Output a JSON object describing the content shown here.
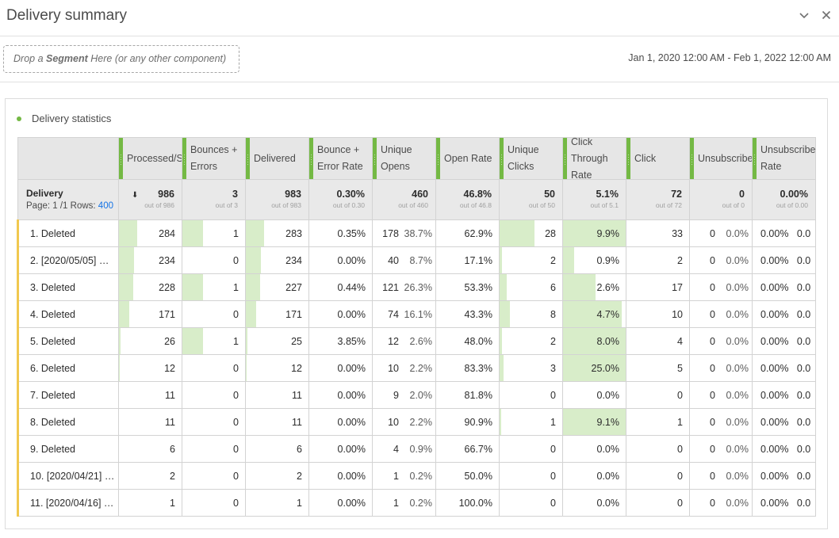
{
  "header": {
    "title": "Delivery summary",
    "collapse_icon": "chevron-down-icon",
    "close_icon": "close-icon"
  },
  "segment_bar": {
    "drop_prefix": "Drop a ",
    "drop_bold": "Segment",
    "drop_suffix": " Here (or any other component)",
    "date_range": "Jan 1, 2020 12:00 AM - Feb 1, 2022 12:00 AM"
  },
  "panel": {
    "title": "Delivery statistics",
    "accent_color": "#74b944"
  },
  "table": {
    "dimension": {
      "name": "Delivery",
      "page_label": "Page: 1 /1",
      "rows_label": "Rows:",
      "rows_value": "400"
    },
    "columns": [
      {
        "label": "Processed/Sent",
        "total": "986",
        "total_sub": "out of 986"
      },
      {
        "label": "Bounces + Errors",
        "total": "3",
        "total_sub": "out of 3"
      },
      {
        "label": "Delivered",
        "total": "983",
        "total_sub": "out of 983"
      },
      {
        "label": "Bounce + Error Rate",
        "total": "0.30%",
        "total_sub": "out of 0.30"
      },
      {
        "label": "Unique Opens",
        "total": "460",
        "total_sub": "out of 460"
      },
      {
        "label": "Open Rate",
        "total": "46.8%",
        "total_sub": "out of 46.8"
      },
      {
        "label": "Unique Clicks",
        "total": "50",
        "total_sub": "out of 50"
      },
      {
        "label": "Click Through Rate",
        "total": "5.1%",
        "total_sub": "out of 5.1"
      },
      {
        "label": "Click",
        "total": "72",
        "total_sub": "out of 72"
      },
      {
        "label": "Unsubscribes",
        "total": "0",
        "total_sub": "out of 0"
      },
      {
        "label": "Unsubscribe Rate",
        "total": "0.00%",
        "total_sub": "out of 0.00"
      }
    ],
    "rows": [
      {
        "name": "1. Deleted",
        "processed": "284",
        "processed_bar": 0.29,
        "bounces": "1",
        "bounces_bar": 0.33,
        "delivered": "283",
        "delivered_bar": 0.29,
        "bounce_rate": "0.35%",
        "opens": "178",
        "opens_pct": "38.7%",
        "open_rate": "62.9%",
        "clicks": "28",
        "clicks_bar": 0.56,
        "ctr": "9.9%",
        "ctr_bar": 1.0,
        "click": "33",
        "unsub": "0",
        "unsub_pct": "0.0%",
        "unsub_rate": "0.00%",
        "unsub_rate_pct": "0.0"
      },
      {
        "name": "2. [2020/05/05] …",
        "processed": "234",
        "processed_bar": 0.24,
        "bounces": "0",
        "bounces_bar": 0,
        "delivered": "234",
        "delivered_bar": 0.24,
        "bounce_rate": "0.00%",
        "opens": "40",
        "opens_pct": "8.7%",
        "open_rate": "17.1%",
        "clicks": "2",
        "clicks_bar": 0.04,
        "ctr": "0.9%",
        "ctr_bar": 0.18,
        "click": "2",
        "unsub": "0",
        "unsub_pct": "0.0%",
        "unsub_rate": "0.00%",
        "unsub_rate_pct": "0.0"
      },
      {
        "name": "3. Deleted",
        "processed": "228",
        "processed_bar": 0.23,
        "bounces": "1",
        "bounces_bar": 0.33,
        "delivered": "227",
        "delivered_bar": 0.23,
        "bounce_rate": "0.44%",
        "opens": "121",
        "opens_pct": "26.3%",
        "open_rate": "53.3%",
        "clicks": "6",
        "clicks_bar": 0.12,
        "ctr": "2.6%",
        "ctr_bar": 0.52,
        "click": "17",
        "unsub": "0",
        "unsub_pct": "0.0%",
        "unsub_rate": "0.00%",
        "unsub_rate_pct": "0.0"
      },
      {
        "name": "4. Deleted",
        "processed": "171",
        "processed_bar": 0.17,
        "bounces": "0",
        "bounces_bar": 0,
        "delivered": "171",
        "delivered_bar": 0.17,
        "bounce_rate": "0.00%",
        "opens": "74",
        "opens_pct": "16.1%",
        "open_rate": "43.3%",
        "clicks": "8",
        "clicks_bar": 0.16,
        "ctr": "4.7%",
        "ctr_bar": 0.94,
        "click": "10",
        "unsub": "0",
        "unsub_pct": "0.0%",
        "unsub_rate": "0.00%",
        "unsub_rate_pct": "0.0"
      },
      {
        "name": "5. Deleted",
        "processed": "26",
        "processed_bar": 0.03,
        "bounces": "1",
        "bounces_bar": 0.33,
        "delivered": "25",
        "delivered_bar": 0.03,
        "bounce_rate": "3.85%",
        "opens": "12",
        "opens_pct": "2.6%",
        "open_rate": "48.0%",
        "clicks": "2",
        "clicks_bar": 0.04,
        "ctr": "8.0%",
        "ctr_bar": 1.0,
        "click": "4",
        "unsub": "0",
        "unsub_pct": "0.0%",
        "unsub_rate": "0.00%",
        "unsub_rate_pct": "0.0"
      },
      {
        "name": "6. Deleted",
        "processed": "12",
        "processed_bar": 0.01,
        "bounces": "0",
        "bounces_bar": 0,
        "delivered": "12",
        "delivered_bar": 0.01,
        "bounce_rate": "0.00%",
        "opens": "10",
        "opens_pct": "2.2%",
        "open_rate": "83.3%",
        "clicks": "3",
        "clicks_bar": 0.06,
        "ctr": "25.0%",
        "ctr_bar": 1.0,
        "click": "5",
        "unsub": "0",
        "unsub_pct": "0.0%",
        "unsub_rate": "0.00%",
        "unsub_rate_pct": "0.0"
      },
      {
        "name": "7. Deleted",
        "processed": "11",
        "processed_bar": 0,
        "bounces": "0",
        "bounces_bar": 0,
        "delivered": "11",
        "delivered_bar": 0,
        "bounce_rate": "0.00%",
        "opens": "9",
        "opens_pct": "2.0%",
        "open_rate": "81.8%",
        "clicks": "0",
        "clicks_bar": 0,
        "ctr": "0.0%",
        "ctr_bar": 0,
        "click": "0",
        "unsub": "0",
        "unsub_pct": "0.0%",
        "unsub_rate": "0.00%",
        "unsub_rate_pct": "0.0"
      },
      {
        "name": "8. Deleted",
        "processed": "11",
        "processed_bar": 0,
        "bounces": "0",
        "bounces_bar": 0,
        "delivered": "11",
        "delivered_bar": 0,
        "bounce_rate": "0.00%",
        "opens": "10",
        "opens_pct": "2.2%",
        "open_rate": "90.9%",
        "clicks": "1",
        "clicks_bar": 0.02,
        "ctr": "9.1%",
        "ctr_bar": 1.0,
        "click": "1",
        "unsub": "0",
        "unsub_pct": "0.0%",
        "unsub_rate": "0.00%",
        "unsub_rate_pct": "0.0"
      },
      {
        "name": "9. Deleted",
        "processed": "6",
        "processed_bar": 0,
        "bounces": "0",
        "bounces_bar": 0,
        "delivered": "6",
        "delivered_bar": 0,
        "bounce_rate": "0.00%",
        "opens": "4",
        "opens_pct": "0.9%",
        "open_rate": "66.7%",
        "clicks": "0",
        "clicks_bar": 0,
        "ctr": "0.0%",
        "ctr_bar": 0,
        "click": "0",
        "unsub": "0",
        "unsub_pct": "0.0%",
        "unsub_rate": "0.00%",
        "unsub_rate_pct": "0.0"
      },
      {
        "name": "10. [2020/04/21] …",
        "processed": "2",
        "processed_bar": 0,
        "bounces": "0",
        "bounces_bar": 0,
        "delivered": "2",
        "delivered_bar": 0,
        "bounce_rate": "0.00%",
        "opens": "1",
        "opens_pct": "0.2%",
        "open_rate": "50.0%",
        "clicks": "0",
        "clicks_bar": 0,
        "ctr": "0.0%",
        "ctr_bar": 0,
        "click": "0",
        "unsub": "0",
        "unsub_pct": "0.0%",
        "unsub_rate": "0.00%",
        "unsub_rate_pct": "0.0"
      },
      {
        "name": "11. [2020/04/16] …",
        "processed": "1",
        "processed_bar": 0,
        "bounces": "0",
        "bounces_bar": 0,
        "delivered": "1",
        "delivered_bar": 0,
        "bounce_rate": "0.00%",
        "opens": "1",
        "opens_pct": "0.2%",
        "open_rate": "100.0%",
        "clicks": "0",
        "clicks_bar": 0,
        "ctr": "0.0%",
        "ctr_bar": 0,
        "click": "0",
        "unsub": "0",
        "unsub_pct": "0.0%",
        "unsub_rate": "0.00%",
        "unsub_rate_pct": "0.0"
      }
    ]
  }
}
